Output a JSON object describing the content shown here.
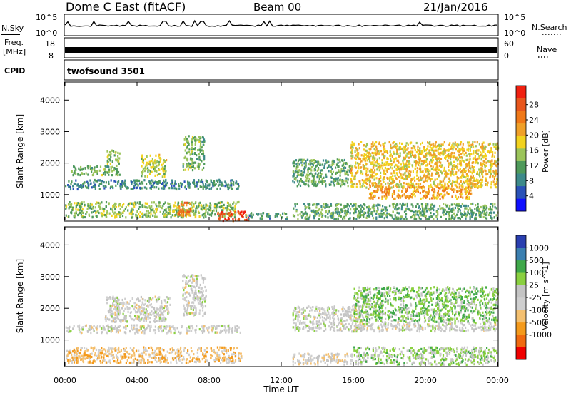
{
  "header": {
    "title": "Dome C East (fitACF)",
    "beam": "Beam 00",
    "date": "21/Jan/2016"
  },
  "strips": {
    "nsky_label": "N.Sky",
    "nsearch_label": "N.Search",
    "noise_ticks": [
      "10^5",
      "10^0"
    ],
    "freq_label": "Freq.",
    "freq_unit": "[MHz]",
    "freq_ticks": [
      "18",
      "8"
    ],
    "nave_label": "Nave",
    "nave_ticks": [
      "60",
      "0"
    ],
    "cpid_label": "CPID",
    "cpid_value": "twofsound 3501"
  },
  "colors": {
    "power_scale": [
      "#1010ff",
      "#2a52b8",
      "#3d8a8a",
      "#4f9a5a",
      "#9bc45a",
      "#f2d21e",
      "#f0a028",
      "#f07818",
      "#e8561c",
      "#f02010"
    ],
    "velocity_scale": [
      "#f00000",
      "#f06a10",
      "#f49a1c",
      "#f4c070",
      "#cfcfcf",
      "#c4c4c4",
      "#8ad040",
      "#3fa84a",
      "#3b7fb0",
      "#2a3fb0"
    ]
  },
  "chart_data": [
    {
      "type": "heatmap",
      "title": "",
      "xlabel": "Time UT",
      "ylabel": "Slant Range [km]",
      "xlim": [
        "00:00",
        "24:00"
      ],
      "ylim": [
        180,
        4550
      ],
      "x_ticks": [
        "00:00",
        "04:00",
        "08:00",
        "12:00",
        "16:00",
        "20:00",
        "00:00"
      ],
      "y_ticks": [
        1000,
        2000,
        3000,
        4000
      ],
      "colorbar": {
        "label": "Power [dB]",
        "range": [
          0,
          33
        ],
        "ticks": [
          4,
          8,
          12,
          16,
          20,
          24,
          28
        ]
      },
      "regions": [
        {
          "t0": 0.0,
          "t1": 9.6,
          "r0": 300,
          "r1": 800,
          "value": 14
        },
        {
          "t0": 0.0,
          "t1": 9.6,
          "r0": 1200,
          "r1": 1500,
          "value": 9
        },
        {
          "t0": 0.3,
          "t1": 3.0,
          "r0": 1650,
          "r1": 1950,
          "value": 13
        },
        {
          "t0": 2.3,
          "t1": 3.0,
          "r0": 2000,
          "r1": 2450,
          "value": 15
        },
        {
          "t0": 4.2,
          "t1": 5.6,
          "r0": 1600,
          "r1": 2300,
          "value": 16
        },
        {
          "t0": 6.5,
          "t1": 7.7,
          "r0": 1800,
          "r1": 2900,
          "value": 13
        },
        {
          "t0": 8.4,
          "t1": 10.2,
          "r0": 200,
          "r1": 500,
          "value": 29
        },
        {
          "t0": 6.2,
          "t1": 7.0,
          "r0": 350,
          "r1": 800,
          "value": 24
        },
        {
          "t0": 10.0,
          "t1": 12.4,
          "r0": 250,
          "r1": 450,
          "value": 10
        },
        {
          "t0": 12.6,
          "t1": 15.8,
          "r0": 1300,
          "r1": 2150,
          "value": 12
        },
        {
          "t0": 12.6,
          "t1": 24.0,
          "r0": 250,
          "r1": 750,
          "value": 12
        },
        {
          "t0": 15.8,
          "t1": 24.0,
          "r0": 1250,
          "r1": 2700,
          "value": 19
        },
        {
          "t0": 16.8,
          "t1": 22.5,
          "r0": 900,
          "r1": 1300,
          "value": 22
        }
      ]
    },
    {
      "type": "heatmap",
      "title": "",
      "xlabel": "Time UT",
      "ylabel": "Slant Range [km]",
      "xlim": [
        "00:00",
        "24:00"
      ],
      "ylim": [
        180,
        4550
      ],
      "x_ticks": [
        "00:00",
        "04:00",
        "08:00",
        "12:00",
        "16:00",
        "20:00",
        "00:00"
      ],
      "y_ticks": [
        1000,
        2000,
        3000,
        4000
      ],
      "colorbar": {
        "label": "Velocity [m s^-1]",
        "ticks": [
          1000,
          500,
          100,
          25,
          -25,
          -100,
          -500,
          -1000
        ]
      },
      "regions": [
        {
          "t0": 0.0,
          "t1": 9.8,
          "r0": 300,
          "r1": 800,
          "value": -300
        },
        {
          "t0": 0.0,
          "t1": 9.8,
          "r0": 1250,
          "r1": 1500,
          "value": 0
        },
        {
          "t0": 2.2,
          "t1": 5.8,
          "r0": 1600,
          "r1": 2400,
          "value": 0
        },
        {
          "t0": 6.5,
          "t1": 7.8,
          "r0": 1800,
          "r1": 3100,
          "value": 0
        },
        {
          "t0": 12.6,
          "t1": 16.5,
          "r0": 1300,
          "r1": 2100,
          "value": 0
        },
        {
          "t0": 16.0,
          "t1": 24.0,
          "r0": 1300,
          "r1": 1600,
          "value": 0
        },
        {
          "t0": 16.0,
          "t1": 24.0,
          "r0": 1600,
          "r1": 2700,
          "value": 300
        },
        {
          "t0": 16.0,
          "t1": 24.0,
          "r0": 250,
          "r1": 800,
          "value": 200
        },
        {
          "t0": 12.6,
          "t1": 16.0,
          "r0": 250,
          "r1": 600,
          "value": -80
        }
      ]
    }
  ]
}
